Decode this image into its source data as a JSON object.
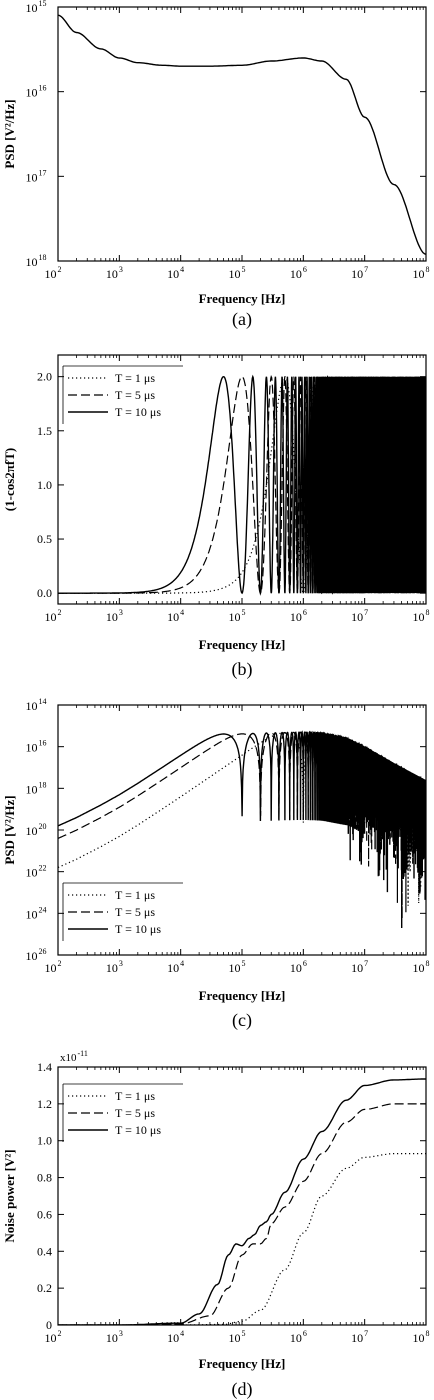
{
  "chart_data": [
    {
      "id": "a",
      "type": "line",
      "caption": "(a)",
      "xlabel": "Frequency [Hz]",
      "ylabel": "PSD [V²/Hz]",
      "x_scale": "log",
      "y_scale": "log",
      "xlim": [
        100,
        100000000
      ],
      "ylim": [
        1e-18,
        1e-15
      ],
      "x_ticks": [
        {
          "base": "10",
          "exp": "2"
        },
        {
          "base": "10",
          "exp": "3"
        },
        {
          "base": "10",
          "exp": "4"
        },
        {
          "base": "10",
          "exp": "5"
        },
        {
          "base": "10",
          "exp": "6"
        },
        {
          "base": "10",
          "exp": "7"
        },
        {
          "base": "10",
          "exp": "8"
        }
      ],
      "y_ticks": [
        {
          "base": "10",
          "exp": "15"
        },
        {
          "base": "10",
          "exp": "16"
        },
        {
          "base": "10",
          "exp": "17"
        },
        {
          "base": "10",
          "exp": "18"
        }
      ],
      "legend": null,
      "series": [
        {
          "style": "solid",
          "x": [
            100,
            200,
            500,
            1000,
            2000,
            5000,
            10000,
            30000,
            100000,
            300000,
            1000000,
            2000000,
            5000000,
            10000000,
            30000000,
            100000000
          ],
          "y": [
            8e-16,
            5e-16,
            3.2e-16,
            2.5e-16,
            2.2e-16,
            2.05e-16,
            2e-16,
            2e-16,
            2.05e-16,
            2.3e-16,
            2.5e-16,
            2.3e-16,
            1.4e-16,
            5e-17,
            8e-18,
            1.2e-18
          ]
        }
      ]
    },
    {
      "id": "b",
      "type": "line",
      "caption": "(b)",
      "xlabel": "Frequency [Hz]",
      "ylabel": "(1-cos2πfT)",
      "x_scale": "log",
      "y_scale": "linear",
      "xlim": [
        100,
        100000000
      ],
      "ylim": [
        -0.1,
        2.2
      ],
      "x_ticks": [
        {
          "base": "10",
          "exp": "2"
        },
        {
          "base": "10",
          "exp": "3"
        },
        {
          "base": "10",
          "exp": "4"
        },
        {
          "base": "10",
          "exp": "5"
        },
        {
          "base": "10",
          "exp": "6"
        },
        {
          "base": "10",
          "exp": "7"
        },
        {
          "base": "10",
          "exp": "8"
        }
      ],
      "y_ticks": [
        "0.0",
        "0.5",
        "1.0",
        "1.5",
        "2.0"
      ],
      "y_tick_values": [
        0,
        0.5,
        1,
        1.5,
        2
      ],
      "legend": {
        "position": "top-left",
        "entries": [
          {
            "label": "T = 1 μs",
            "style": "dotted"
          },
          {
            "label": "T = 5 μs",
            "style": "dashed"
          },
          {
            "label": "T = 10 μs",
            "style": "solid"
          }
        ]
      },
      "series": [
        {
          "style": "dotted",
          "T_s": 1e-06,
          "function": "1-cos(2*pi*f*T)"
        },
        {
          "style": "dashed",
          "T_s": 5e-06,
          "function": "1-cos(2*pi*f*T)"
        },
        {
          "style": "solid",
          "T_s": 1e-05,
          "function": "1-cos(2*pi*f*T)"
        }
      ]
    },
    {
      "id": "c",
      "type": "line",
      "caption": "(c)",
      "xlabel": "Frequency [Hz]",
      "ylabel": "PSD [V²/Hz]",
      "x_scale": "log",
      "y_scale": "log",
      "xlim": [
        100,
        100000000
      ],
      "ylim": [
        1e-26,
        1e-14
      ],
      "x_ticks": [
        {
          "base": "10",
          "exp": "2"
        },
        {
          "base": "10",
          "exp": "3"
        },
        {
          "base": "10",
          "exp": "4"
        },
        {
          "base": "10",
          "exp": "5"
        },
        {
          "base": "10",
          "exp": "6"
        },
        {
          "base": "10",
          "exp": "7"
        },
        {
          "base": "10",
          "exp": "8"
        }
      ],
      "y_ticks": [
        {
          "base": "10",
          "exp": "14"
        },
        {
          "base": "10",
          "exp": "16"
        },
        {
          "base": "10",
          "exp": "18"
        },
        {
          "base": "10",
          "exp": "20"
        },
        {
          "base": "10",
          "exp": "22"
        },
        {
          "base": "10",
          "exp": "24"
        },
        {
          "base": "10",
          "exp": "26"
        }
      ],
      "legend": {
        "position": "bottom-left",
        "entries": [
          {
            "label": "T = 1 μs",
            "style": "dotted"
          },
          {
            "label": "T = 5 μs",
            "style": "dashed"
          },
          {
            "label": "T = 10 μs",
            "style": "solid"
          }
        ]
      },
      "series": [
        {
          "style": "dotted",
          "T_s": 1e-06,
          "function": "PSD(a) * (1-cos(2*pi*f*T))"
        },
        {
          "style": "dashed",
          "T_s": 5e-06,
          "function": "PSD(a) * (1-cos(2*pi*f*T))"
        },
        {
          "style": "solid",
          "T_s": 1e-05,
          "function": "PSD(a) * (1-cos(2*pi*f*T))"
        }
      ]
    },
    {
      "id": "d",
      "type": "line",
      "caption": "(d)",
      "xlabel": "Frequency [Hz]",
      "ylabel": "Noise power [V²]",
      "x_scale": "log",
      "y_scale": "linear",
      "xlim": [
        100,
        100000000
      ],
      "ylim": [
        0,
        1.4
      ],
      "y_multiplier": {
        "base": "x10",
        "exp": "-11"
      },
      "x_ticks": [
        {
          "base": "10",
          "exp": "2"
        },
        {
          "base": "10",
          "exp": "3"
        },
        {
          "base": "10",
          "exp": "4"
        },
        {
          "base": "10",
          "exp": "5"
        },
        {
          "base": "10",
          "exp": "6"
        },
        {
          "base": "10",
          "exp": "7"
        },
        {
          "base": "10",
          "exp": "8"
        }
      ],
      "y_ticks": [
        "0",
        "0.2",
        "0.4",
        "0.6",
        "0.8",
        "1.0",
        "1.2",
        "1.4"
      ],
      "y_tick_values": [
        0,
        0.2,
        0.4,
        0.6,
        0.8,
        1.0,
        1.2,
        1.4
      ],
      "legend": {
        "position": "top-left",
        "entries": [
          {
            "label": "T = 1 μs",
            "style": "dotted"
          },
          {
            "label": "T = 5 μs",
            "style": "dashed"
          },
          {
            "label": "T = 10 μs",
            "style": "solid"
          }
        ]
      },
      "series": [
        {
          "style": "dotted",
          "x": [
            100,
            1000,
            10000,
            50000,
            100000,
            200000,
            500000,
            1000000,
            2000000,
            5000000,
            10000000,
            30000000,
            100000000
          ],
          "y": [
            0,
            0,
            0,
            0.003,
            0.02,
            0.08,
            0.3,
            0.5,
            0.7,
            0.85,
            0.91,
            0.93,
            0.93
          ]
        },
        {
          "style": "dashed",
          "x": [
            100,
            1000,
            10000,
            30000,
            60000,
            100000,
            150000,
            200000,
            250000,
            300000,
            500000,
            1000000,
            2000000,
            5000000,
            10000000,
            30000000,
            100000000
          ],
          "y": [
            0,
            0,
            0.005,
            0.05,
            0.2,
            0.38,
            0.44,
            0.44,
            0.47,
            0.55,
            0.64,
            0.78,
            0.93,
            1.1,
            1.17,
            1.2,
            1.2
          ]
        },
        {
          "style": "solid",
          "x": [
            100,
            1000,
            10000,
            20000,
            40000,
            60000,
            80000,
            100000,
            130000,
            160000,
            200000,
            250000,
            300000,
            500000,
            1000000,
            2000000,
            5000000,
            10000000,
            30000000,
            100000000
          ],
          "y": [
            0,
            0,
            0.01,
            0.06,
            0.22,
            0.38,
            0.44,
            0.43,
            0.47,
            0.49,
            0.54,
            0.56,
            0.6,
            0.72,
            0.9,
            1.05,
            1.22,
            1.3,
            1.33,
            1.335
          ]
        }
      ]
    }
  ]
}
